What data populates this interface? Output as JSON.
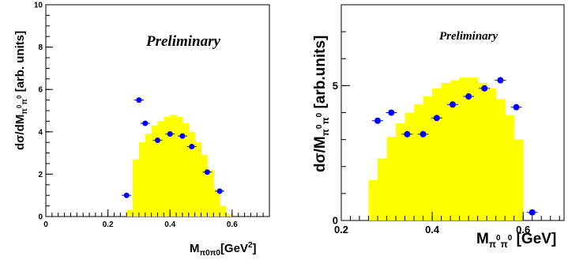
{
  "chart_data": [
    {
      "type": "bar",
      "annotation": "Preliminary",
      "ylabel": {
        "main": "dσ/dM",
        "sub": "π",
        "sup1": "0",
        "sub2": "π",
        "sup2": "0",
        "tail": " [arb. units]"
      },
      "xlabel": {
        "main": "M",
        "sub": "π0π0",
        "tail": "[GeV",
        "sup": "2",
        "close": "]"
      },
      "xlim": [
        0,
        0.72
      ],
      "ylim": [
        0,
        10
      ],
      "x_ticks": [
        "0",
        "0.2",
        "0.4",
        "0.6"
      ],
      "x_tick_values": [
        0,
        0.2,
        0.4,
        0.6
      ],
      "y_ticks": [
        "0",
        "2",
        "4",
        "6",
        "8",
        "10"
      ],
      "y_tick_values": [
        0,
        2,
        4,
        6,
        8,
        10
      ],
      "bin_width": 0.02,
      "colors": {
        "histogram": "#ffff00",
        "points": "#0000ff"
      },
      "histogram": {
        "x_left": [
          0.26,
          0.28,
          0.3,
          0.32,
          0.34,
          0.36,
          0.38,
          0.4,
          0.42,
          0.44,
          0.46,
          0.48,
          0.5,
          0.52,
          0.54,
          0.56,
          0.58
        ],
        "values": [
          0.3,
          2.7,
          3.5,
          3.9,
          4.3,
          4.5,
          4.7,
          4.8,
          4.7,
          4.4,
          4.0,
          3.5,
          2.9,
          2.2,
          1.3,
          0.5,
          0.1
        ]
      },
      "points": {
        "x": [
          0.26,
          0.3,
          0.32,
          0.36,
          0.4,
          0.44,
          0.47,
          0.52,
          0.56
        ],
        "y": [
          1.0,
          5.5,
          4.4,
          3.6,
          3.9,
          3.8,
          3.3,
          2.1,
          1.2
        ]
      }
    },
    {
      "type": "bar",
      "annotation": "Preliminary",
      "ylabel": {
        "main": "dσ/M",
        "sub": "π",
        "sup1": "0",
        "sub2": "π",
        "sup2": "0",
        "tail": " [arb.units]"
      },
      "xlabel": {
        "main": "M",
        "sub": "π",
        "sup1": "0",
        "sub2": "π",
        "sup2": "0",
        "tail": " [GeV]"
      },
      "xlim": [
        0.2,
        0.69
      ],
      "ylim": [
        0,
        8
      ],
      "x_ticks": [
        "0.2",
        "0.4",
        "0.6"
      ],
      "x_tick_values": [
        0.2,
        0.4,
        0.6
      ],
      "y_ticks": [
        "0",
        "5"
      ],
      "y_tick_values": [
        0,
        5
      ],
      "bin_width": 0.02,
      "colors": {
        "histogram": "#ffff00",
        "points": "#0000ff"
      },
      "histogram": {
        "x_left": [
          0.26,
          0.28,
          0.3,
          0.32,
          0.34,
          0.36,
          0.38,
          0.4,
          0.42,
          0.44,
          0.46,
          0.48,
          0.5,
          0.52,
          0.54,
          0.56,
          0.58
        ],
        "values": [
          1.5,
          2.3,
          3.1,
          3.6,
          4.0,
          4.3,
          4.6,
          4.9,
          5.1,
          5.2,
          5.3,
          5.3,
          5.1,
          4.9,
          4.5,
          3.9,
          3.0
        ]
      },
      "points": {
        "x": [
          0.28,
          0.31,
          0.345,
          0.38,
          0.41,
          0.445,
          0.48,
          0.515,
          0.55,
          0.585,
          0.62
        ],
        "y": [
          3.7,
          4.0,
          3.2,
          3.2,
          3.8,
          4.3,
          4.6,
          4.9,
          5.2,
          4.2,
          0.3
        ]
      }
    }
  ]
}
